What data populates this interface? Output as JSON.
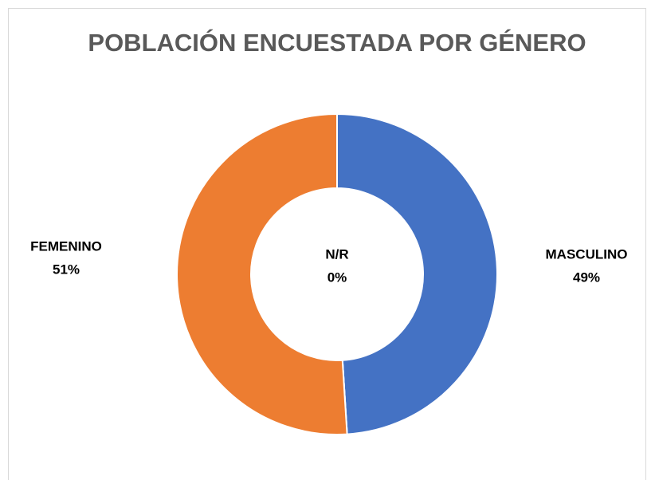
{
  "chart_data": {
    "type": "donut",
    "title": "POBLACIÓN ENCUESTADA POR GÉNERO",
    "categories": [
      "MASCULINO",
      "N/R",
      "FEMENINO"
    ],
    "values": [
      49,
      0,
      51
    ],
    "value_labels": [
      "49%",
      "0%",
      "51%"
    ],
    "colors": [
      "#4472c4",
      "#a5a5a5",
      "#ed7d31"
    ]
  }
}
